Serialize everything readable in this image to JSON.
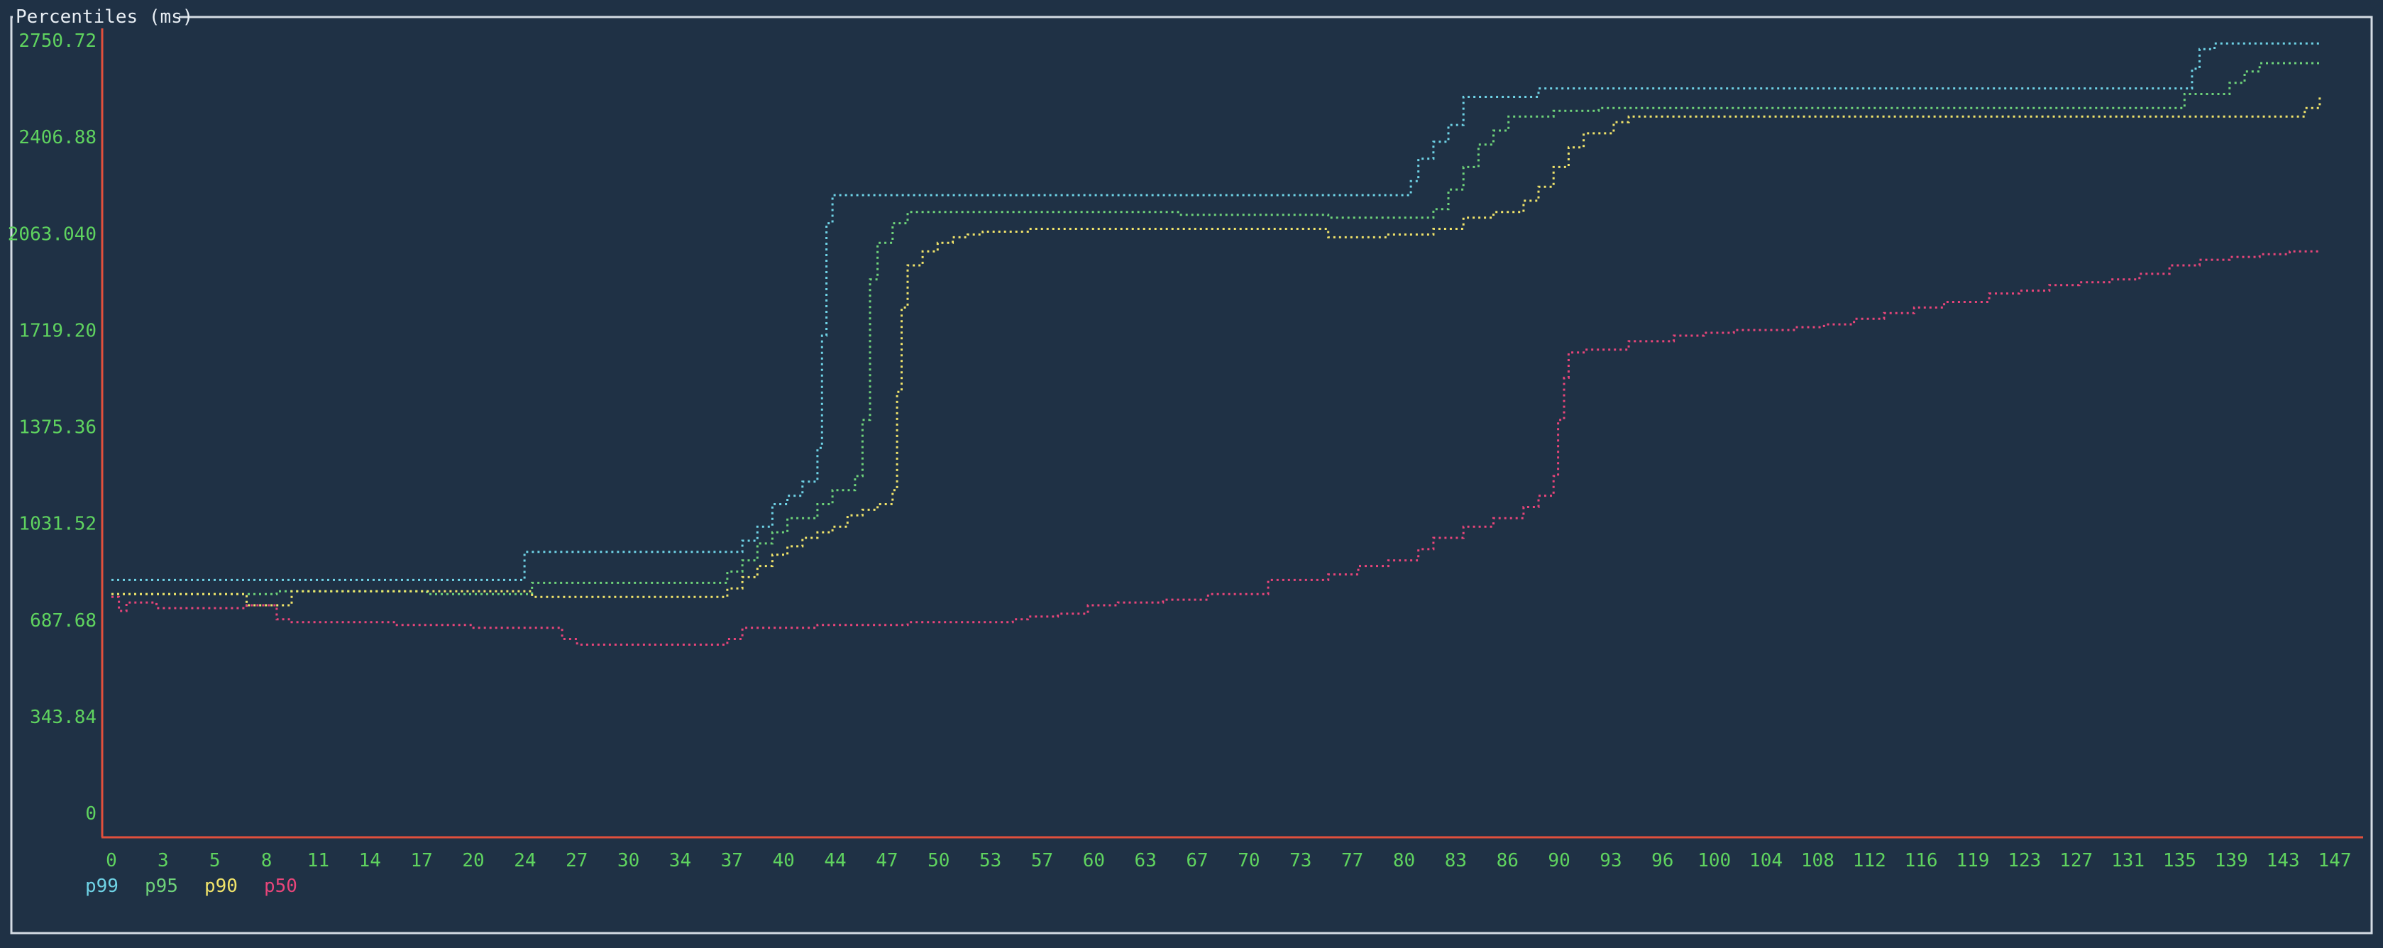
{
  "panel": {
    "title": "Percentiles (ms)"
  },
  "colors": {
    "background": "#1f3145",
    "border": "#d4dce4",
    "axis": "#e2503c",
    "tick_text": "#5fd35f",
    "p99": "#6fd3e6",
    "p95": "#6fd37a",
    "p90": "#f0e36a",
    "p50": "#e8457a"
  },
  "chart_data": {
    "type": "line",
    "title": "Percentiles (ms)",
    "xlabel": "",
    "ylabel": "",
    "xlim": [
      0,
      148
    ],
    "ylim": [
      0,
      2750.72
    ],
    "y_ticks": [
      "0",
      "343.84",
      "687.68",
      "1031.52",
      "1375.36",
      "1719.20",
      "2063.040",
      "2406.88",
      "2750.72"
    ],
    "y_tick_values": [
      0,
      343.84,
      687.68,
      1031.52,
      1375.36,
      1719.2,
      2063.04,
      2406.88,
      2750.72
    ],
    "x_ticks": [
      "0",
      "3",
      "5",
      "8",
      "11",
      "14",
      "17",
      "20",
      "24",
      "27",
      "30",
      "34",
      "37",
      "40",
      "44",
      "47",
      "50",
      "53",
      "57",
      "60",
      "63",
      "67",
      "70",
      "73",
      "77",
      "80",
      "83",
      "86",
      "90",
      "93",
      "96",
      "100",
      "104",
      "108",
      "112",
      "116",
      "119",
      "123",
      "127",
      "131",
      "135",
      "139",
      "143",
      "147"
    ],
    "legend_position": "bottom-left",
    "grid": false,
    "series": [
      {
        "name": "p99",
        "color": "#6fd3e6",
        "x": [
          0,
          27,
          27.5,
          41,
          42,
          43,
          44,
          45,
          46,
          47,
          47.3,
          47.6,
          48,
          49,
          86,
          86.5,
          87,
          88,
          89,
          90,
          94,
          95,
          138,
          138.5,
          139,
          140,
          147
        ],
        "y": [
          830,
          830,
          930,
          930,
          970,
          1020,
          1100,
          1130,
          1180,
          1300,
          1700,
          2100,
          2200,
          2200,
          2200,
          2250,
          2330,
          2390,
          2450,
          2550,
          2550,
          2580,
          2580,
          2650,
          2720,
          2740,
          2750
        ]
      },
      {
        "name": "p95",
        "color": "#6fd37a",
        "x": [
          0,
          10,
          11,
          20,
          21,
          27,
          28,
          40,
          41,
          42,
          43,
          44,
          45,
          47,
          48,
          49,
          49.5,
          50,
          50.5,
          51,
          52,
          53,
          70,
          71,
          80,
          81,
          87,
          88,
          89,
          90,
          91,
          92,
          93,
          96,
          99,
          100,
          137,
          138,
          140,
          141,
          142,
          143,
          147
        ],
        "y": [
          780,
          780,
          790,
          790,
          780,
          780,
          820,
          820,
          860,
          900,
          960,
          1000,
          1050,
          1100,
          1150,
          1150,
          1200,
          1400,
          1900,
          2030,
          2100,
          2140,
          2140,
          2130,
          2130,
          2120,
          2120,
          2150,
          2220,
          2300,
          2380,
          2430,
          2480,
          2500,
          2510,
          2510,
          2510,
          2560,
          2560,
          2600,
          2640,
          2670,
          2670
        ]
      },
      {
        "name": "p90",
        "color": "#f0e36a",
        "x": [
          0,
          8,
          9,
          11,
          12,
          27,
          28,
          40,
          41,
          42,
          43,
          44,
          45,
          46,
          47,
          48,
          49,
          50,
          51,
          52,
          52.3,
          52.6,
          53,
          54,
          55,
          56,
          57,
          58,
          60,
          61,
          80,
          81,
          84,
          85,
          88,
          90,
          92,
          94,
          95,
          96,
          97,
          98,
          100,
          101,
          145,
          146,
          147
        ],
        "y": [
          780,
          780,
          740,
          740,
          790,
          790,
          770,
          770,
          800,
          840,
          880,
          920,
          950,
          980,
          1000,
          1020,
          1060,
          1080,
          1100,
          1150,
          1500,
          1800,
          1950,
          2000,
          2030,
          2050,
          2060,
          2070,
          2070,
          2080,
          2080,
          2050,
          2050,
          2060,
          2080,
          2120,
          2140,
          2180,
          2230,
          2300,
          2370,
          2420,
          2460,
          2480,
          2480,
          2510,
          2550
        ]
      },
      {
        "name": "p50",
        "color": "#e8457a",
        "x": [
          0,
          0.5,
          1,
          3,
          5,
          6,
          8,
          9,
          11,
          12,
          13,
          14,
          15,
          17,
          19,
          20,
          21,
          24,
          25,
          27,
          28,
          30,
          31,
          32,
          40,
          41,
          42,
          44,
          45,
          46,
          47,
          50,
          53,
          57,
          60,
          61,
          62,
          63,
          65,
          67,
          70,
          73,
          75,
          77,
          79,
          81,
          83,
          85,
          87,
          88,
          90,
          92,
          94,
          95,
          96,
          96.3,
          96.7,
          97,
          98,
          100,
          101,
          104,
          106,
          108,
          110,
          112,
          114,
          116,
          118,
          120,
          122,
          125,
          127,
          129,
          131,
          133,
          135,
          137,
          139,
          141,
          143,
          145,
          147
        ],
        "y": [
          770,
          720,
          750,
          730,
          730,
          730,
          730,
          740,
          690,
          680,
          680,
          680,
          680,
          680,
          670,
          670,
          670,
          660,
          660,
          660,
          660,
          620,
          600,
          600,
          600,
          620,
          660,
          660,
          660,
          660,
          670,
          670,
          680,
          680,
          690,
          700,
          700,
          710,
          740,
          750,
          760,
          780,
          780,
          830,
          830,
          850,
          880,
          900,
          940,
          980,
          1020,
          1050,
          1090,
          1130,
          1200,
          1400,
          1550,
          1640,
          1650,
          1650,
          1680,
          1700,
          1710,
          1720,
          1720,
          1730,
          1740,
          1760,
          1780,
          1800,
          1820,
          1850,
          1860,
          1880,
          1890,
          1900,
          1920,
          1950,
          1970,
          1980,
          1990,
          2000,
          2000
        ]
      }
    ]
  }
}
